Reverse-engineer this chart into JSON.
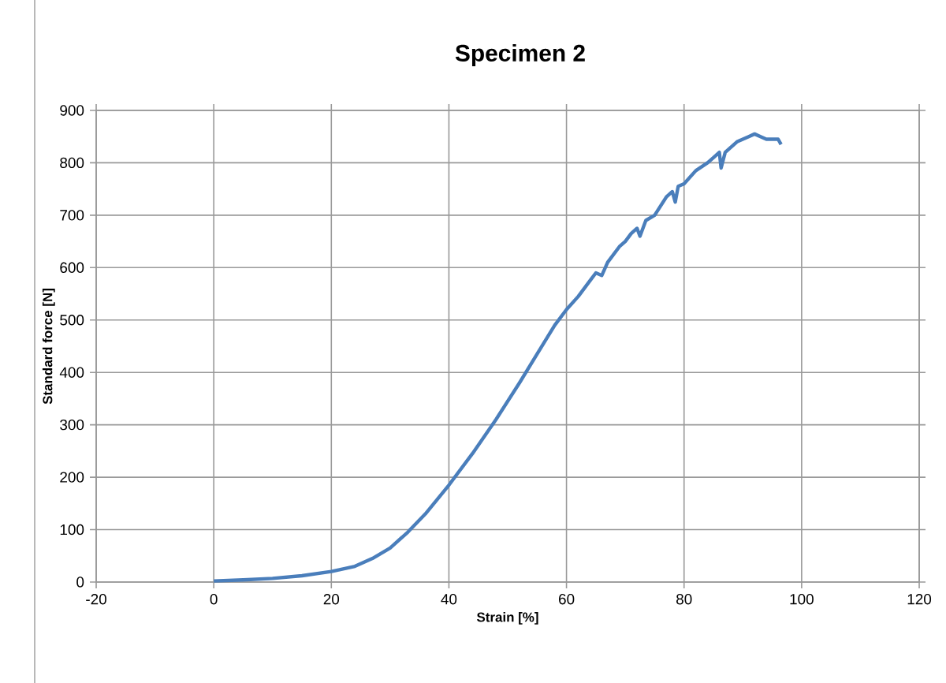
{
  "chart_data": {
    "type": "line",
    "title": "Specimen 2",
    "xlabel": "Strain [%]",
    "ylabel": "Standard force [N]",
    "xlim": [
      -20,
      120
    ],
    "ylim": [
      0,
      900
    ],
    "xticks": [
      -20,
      0,
      20,
      40,
      60,
      80,
      100,
      120
    ],
    "yticks": [
      0,
      100,
      200,
      300,
      400,
      500,
      600,
      700,
      800,
      900
    ],
    "grid": true,
    "marker": "none",
    "line_style": "solid",
    "series": [
      {
        "color": "#4a7ebb",
        "x": [
          0,
          5,
          10,
          15,
          20,
          24,
          27,
          30,
          33,
          36,
          40,
          44,
          48,
          52,
          55,
          58,
          60,
          62,
          64,
          65,
          66,
          67,
          69,
          70,
          71,
          72,
          72.5,
          73.5,
          75,
          77,
          78,
          78.5,
          79,
          80,
          82,
          84,
          85,
          86,
          86.3,
          87,
          89,
          91,
          92,
          93,
          94,
          95,
          96,
          96.5
        ],
        "values": [
          2,
          4,
          7,
          12,
          20,
          30,
          45,
          65,
          95,
          130,
          185,
          245,
          310,
          380,
          435,
          490,
          520,
          545,
          575,
          590,
          585,
          610,
          640,
          650,
          665,
          675,
          660,
          690,
          700,
          735,
          745,
          725,
          755,
          760,
          785,
          800,
          810,
          820,
          790,
          820,
          840,
          850,
          855,
          850,
          845,
          845,
          845,
          835
        ]
      }
    ]
  }
}
